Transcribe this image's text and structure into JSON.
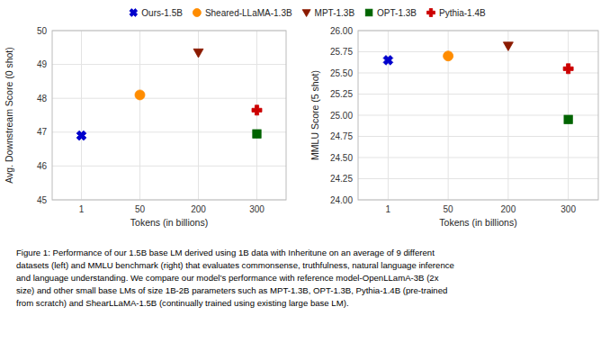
{
  "chart_data": [
    {
      "type": "scatter",
      "x_label": "Tokens (in billions)",
      "y_label": "Avg. Downstream Score (0 shot)",
      "categories": [
        "1",
        "50",
        "200",
        "300"
      ],
      "ylim": [
        45,
        50
      ],
      "yticks": [
        45,
        46,
        47,
        48,
        49,
        50
      ],
      "grid": true,
      "series": [
        {
          "name": "Ours-1.5B",
          "color": "#0000cc",
          "marker": "x",
          "values": [
            46.9,
            null,
            null,
            null
          ]
        },
        {
          "name": "Sheared-LLaMA-1.3B",
          "color": "#ff8c00",
          "marker": "circle",
          "values": [
            null,
            48.1,
            null,
            null
          ]
        },
        {
          "name": "MPT-1.3B",
          "color": "#8b1a00",
          "marker": "triangle_down",
          "values": [
            null,
            null,
            49.35,
            null
          ]
        },
        {
          "name": "OPT-1.3B",
          "color": "#006400",
          "marker": "square",
          "values": [
            null,
            null,
            null,
            46.95
          ]
        },
        {
          "name": "Pythia-1.4B",
          "color": "#cc0000",
          "marker": "plus",
          "values": [
            null,
            null,
            null,
            47.65
          ]
        }
      ],
      "annotations": [
        "Figure 1: Performance of our 1.5B base LM derived using 1B data with Inheritune on an average of 9 different",
        "datasets (left) and MMLU benchmark (right) that evaluates commonsense, truthfulness, natural language inference",
        "and language understanding. We compare our model’s performance with reference model-OpenLLamA-3B (2x",
        "size) and other small base LMs of size 1B-2B parameters such as MPT-1.3B, OPT-1.3B, Pythia-1.4B (pre-trained",
        "from scratch) and ShearLLaMA-1.5B (continually trained using existing large base LM)."
      ]
    },
    {
      "type": "scatter",
      "x_label": "Tokens (in billions)",
      "y_label": "MMLU Score (5 shot)",
      "categories": [
        "1",
        "50",
        "200",
        "300"
      ],
      "ylim": [
        24.0,
        26.0
      ],
      "yticks": [
        {
          "value": 24.0,
          "label": "24.00"
        },
        24.25,
        {
          "value": 24.5,
          "label": "24.50"
        },
        24.75,
        {
          "value": 25.0,
          "label": "25.00"
        },
        25.25,
        {
          "value": 25.5,
          "label": "25.50"
        },
        25.75,
        {
          "value": 26.0,
          "label": "26.00"
        }
      ],
      "grid": true,
      "series": [
        {
          "name": "Ours-1.5B",
          "color": "#0000cc",
          "marker": "x",
          "values": [
            25.65,
            null,
            null,
            null
          ]
        },
        {
          "name": "Sheared-LLaMA-1.3B",
          "color": "#ff8c00",
          "marker": "circle",
          "values": [
            null,
            25.7,
            null,
            null
          ]
        },
        {
          "name": "MPT-1.3B",
          "color": "#8b1a00",
          "marker": "triangle_down",
          "values": [
            null,
            null,
            25.82,
            null
          ]
        },
        {
          "name": "OPT-1.3B",
          "color": "#006400",
          "marker": "square",
          "values": [
            null,
            null,
            null,
            24.95
          ]
        },
        {
          "name": "Pythia-1.4B",
          "color": "#cc0000",
          "marker": "plus",
          "values": [
            null,
            null,
            null,
            25.55
          ]
        }
      ]
    }
  ]
}
